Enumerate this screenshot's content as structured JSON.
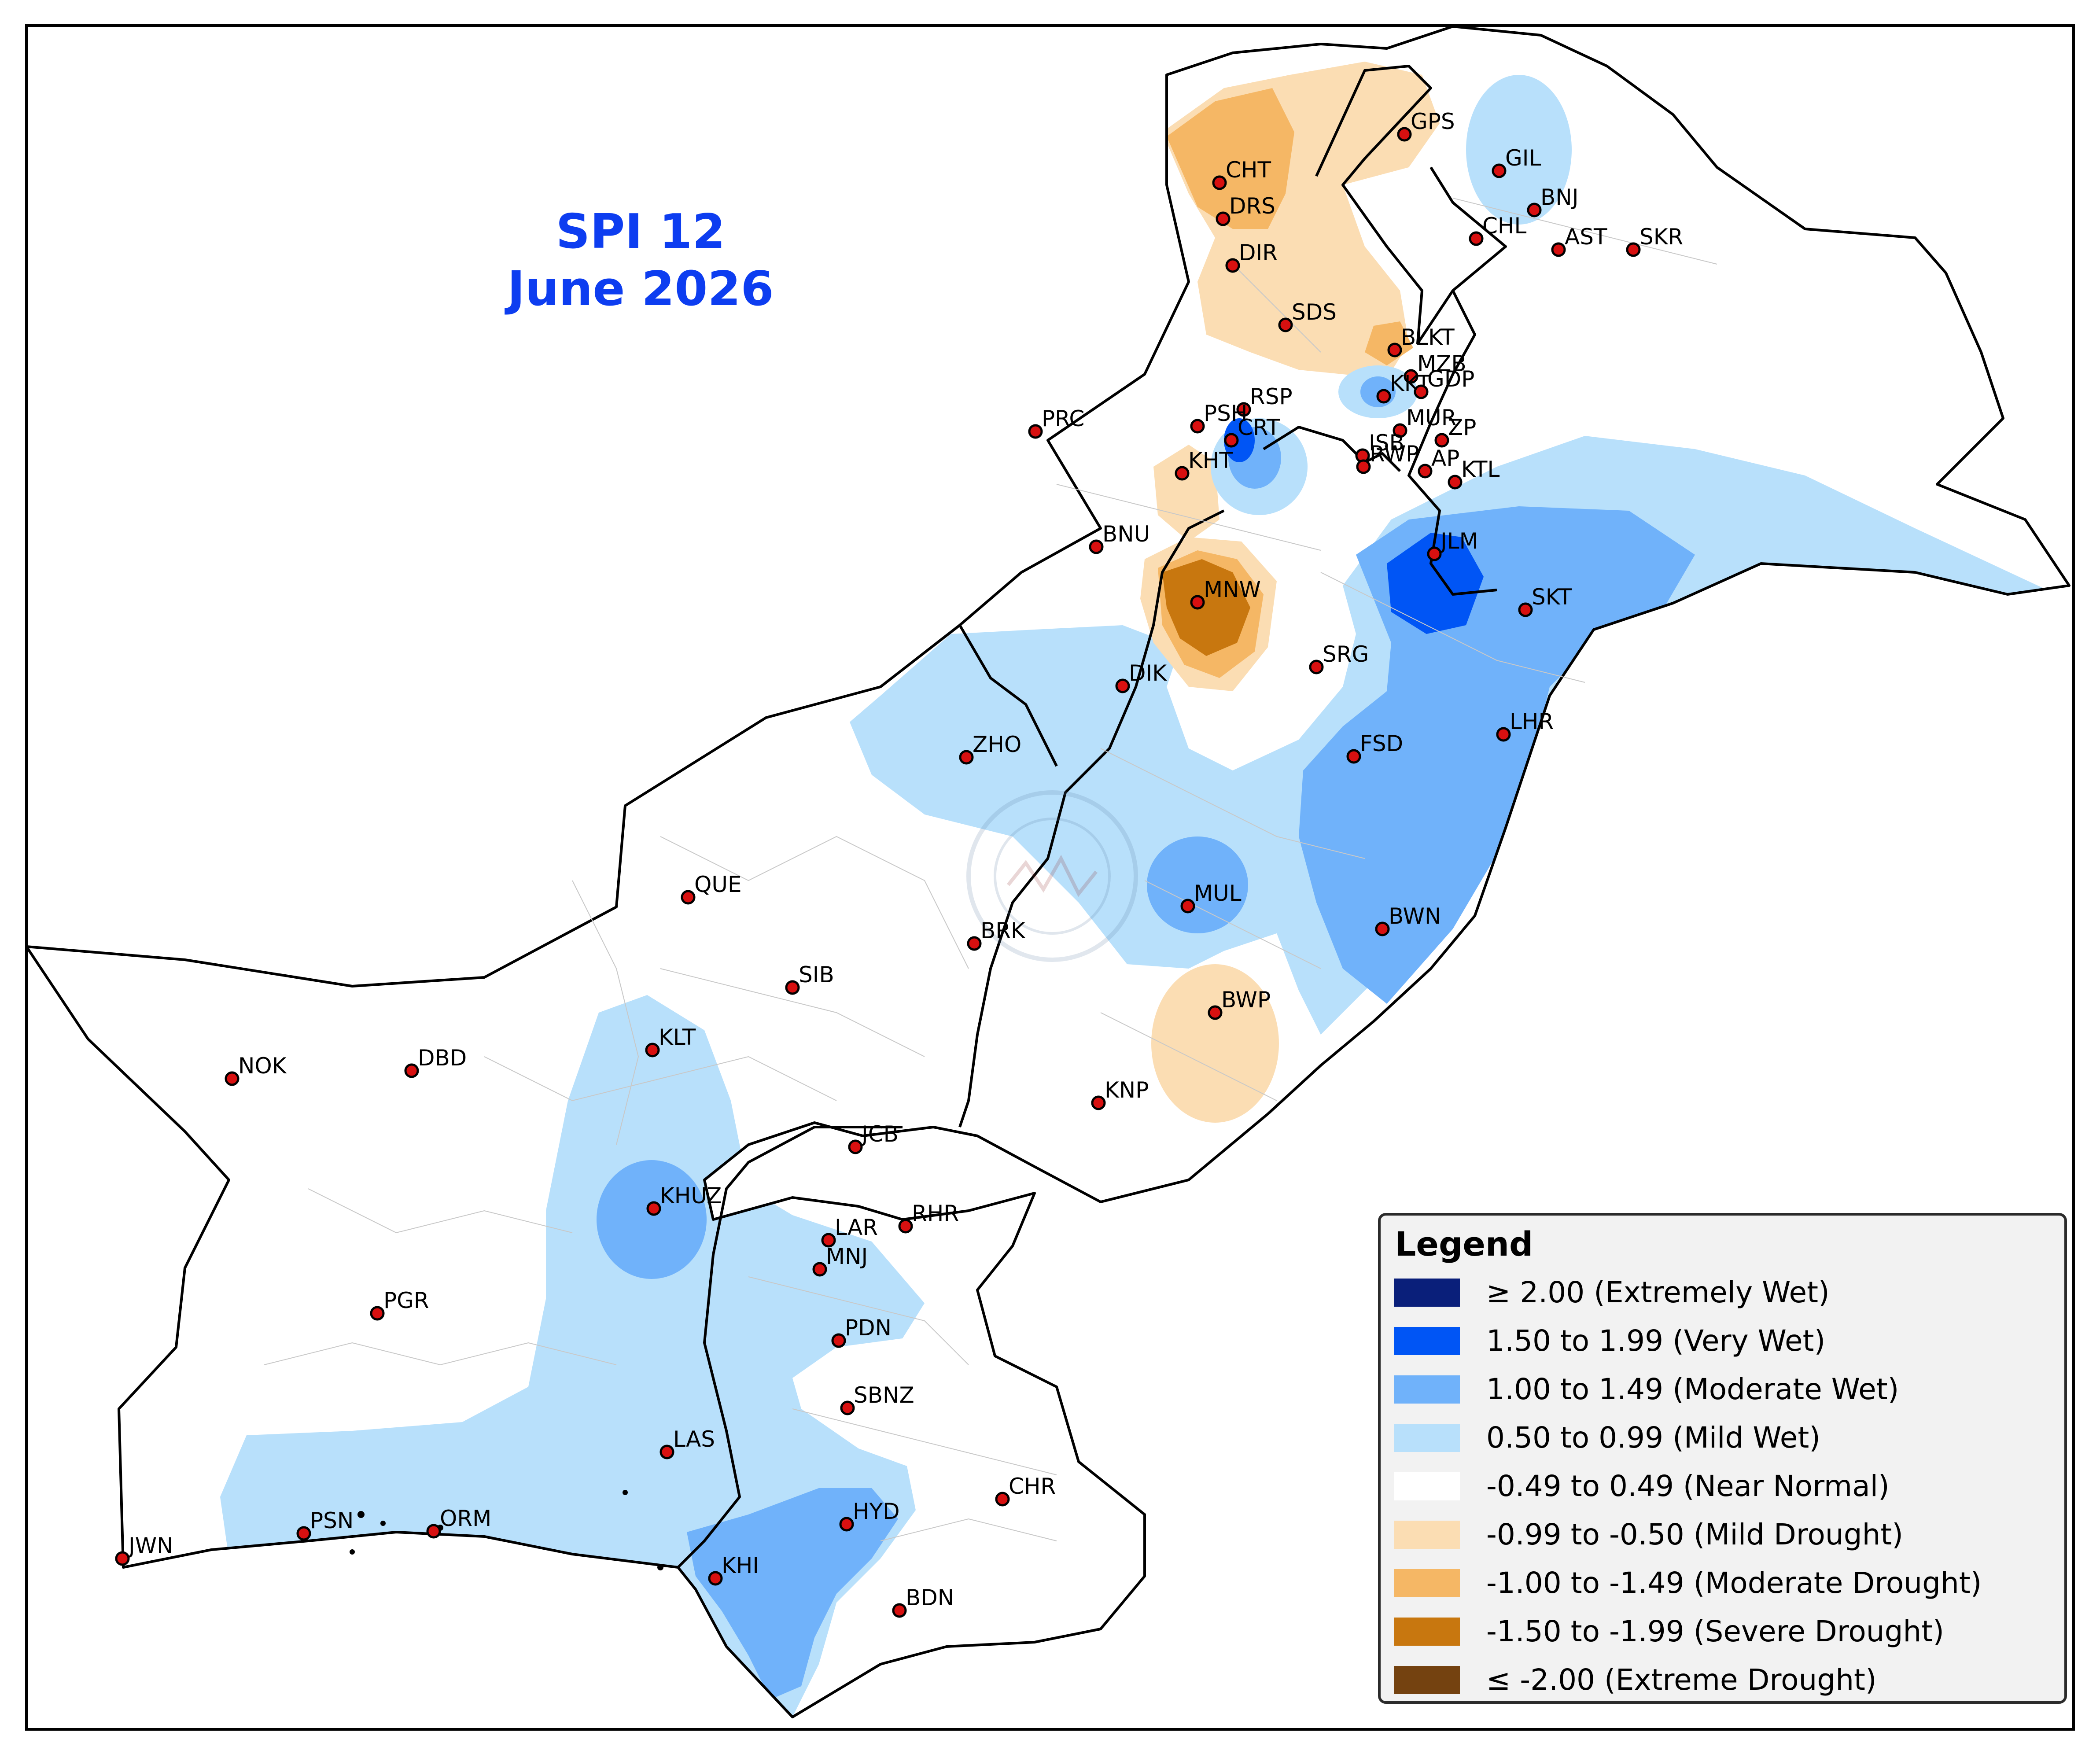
{
  "title": {
    "line1": "SPI 12",
    "line2": "June 2026"
  },
  "legend": {
    "title": "Legend",
    "items": [
      {
        "label": "≥ 2.00 (Extremely Wet)",
        "color": "#0a1f7a"
      },
      {
        "label": "1.50 to 1.99 (Very Wet)",
        "color": "#0055f5"
      },
      {
        "label": "1.00 to 1.49 (Moderate Wet)",
        "color": "#70b2fa"
      },
      {
        "label": "0.50 to 0.99 (Mild Wet)",
        "color": "#b8e0fb"
      },
      {
        "label": "-0.49 to 0.49 (Near Normal)",
        "color": "#ffffff"
      },
      {
        "label": "-0.99 to -0.50 (Mild Drought)",
        "color": "#fbddb3"
      },
      {
        "label": "-1.00 to -1.49 (Moderate Drought)",
        "color": "#f5b765"
      },
      {
        "label": "-1.50 to -1.99 (Severe Drought)",
        "color": "#c8770f"
      },
      {
        "label": "≤ -2.00 (Extreme Drought)",
        "color": "#744210"
      }
    ]
  },
  "stations": [
    "GPS",
    "GIL",
    "CHT",
    "DRS",
    "BNJ",
    "CHL",
    "AST",
    "SKR",
    "DIR",
    "SDS",
    "BLKT",
    "MZB",
    "KKT",
    "GDP",
    "RSP",
    "PRC",
    "PSH",
    "MUR",
    "CRT",
    "ISB",
    "ZP",
    "KHT",
    "RWP",
    "AP",
    "KTL",
    "BNU",
    "JLM",
    "SKT",
    "MNW",
    "SRG",
    "DIK",
    "LHR",
    "FSD",
    "ZHO",
    "QUE",
    "MUL",
    "BWN",
    "BRK",
    "SIB",
    "BWP",
    "KLT",
    "NOK",
    "DBD",
    "KNP",
    "JCB",
    "RHR",
    "KHUZ",
    "LAR",
    "MNJ",
    "PGR",
    "PDN",
    "SBNZ",
    "LAS",
    "CHR",
    "PSN",
    "ORM",
    "HYD",
    "JWN",
    "KHI",
    "BDN"
  ]
}
